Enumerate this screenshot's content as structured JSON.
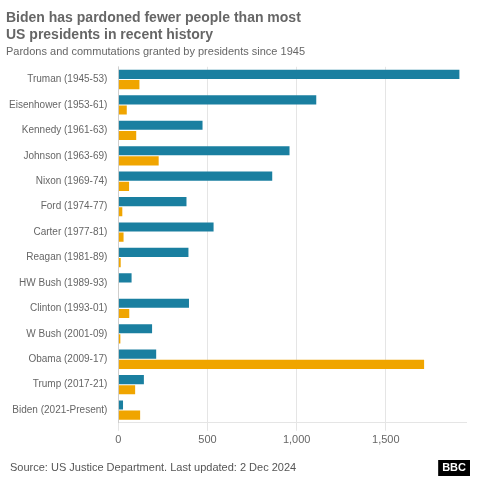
{
  "chart_data": {
    "type": "bar",
    "orientation": "horizontal",
    "title": [
      "Biden has pardoned fewer people than most",
      "US presidents in recent history"
    ],
    "subtitle": "Pardons and commutations granted by presidents since 1945",
    "annotations": [
      "Source: US Justice Department. Last updated: 2 Dec 2024",
      "BBC"
    ],
    "categories": [
      "Truman (1945-53)",
      "Eisenhower (1953-61)",
      "Kennedy (1961-63)",
      "Johnson (1963-69)",
      "Nixon (1969-74)",
      "Ford (1974-77)",
      "Carter (1977-81)",
      "Reagan (1981-89)",
      "HW Bush (1989-93)",
      "Clinton (1993-01)",
      "W Bush (2001-09)",
      "Obama (2009-17)",
      "Trump (2017-21)",
      "Biden (2021-Present)"
    ],
    "series": [
      {
        "name": "Pardons",
        "color": "#1a7fa0",
        "values": [
          1913,
          1110,
          472,
          960,
          863,
          382,
          534,
          393,
          74,
          396,
          189,
          212,
          143,
          26
        ]
      },
      {
        "name": "commutations",
        "color": "#f0a500",
        "values": [
          118,
          47,
          100,
          226,
          60,
          22,
          29,
          13,
          3,
          61,
          11,
          1715,
          94,
          122
        ]
      }
    ],
    "xlim": [
      0,
      1950
    ],
    "xticks": [
      0,
      500,
      {
        "value": 1000,
        "label": "1,000"
      },
      {
        "value": 1500,
        "label": "1,500"
      }
    ],
    "grid": true
  }
}
